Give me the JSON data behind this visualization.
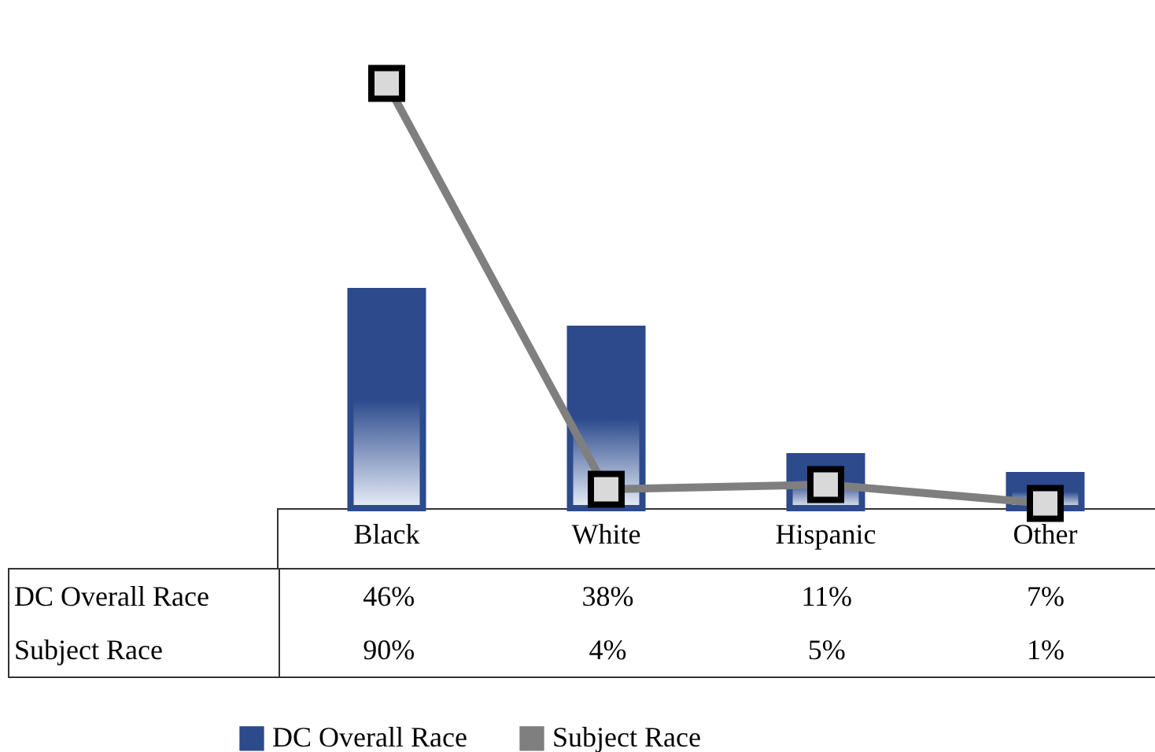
{
  "chart_data": {
    "type": "bar",
    "categories": [
      "Black",
      "White",
      "Hispanic",
      "Other"
    ],
    "series": [
      {
        "name": "DC Overall Race",
        "color": "#2c4a8c",
        "values": [
          46,
          38,
          11,
          7
        ],
        "value_labels": [
          "46%",
          "38%",
          "11%",
          "7%"
        ]
      },
      {
        "name": "Subject Race",
        "type": "line",
        "color": "#7f7f7f",
        "marker": "square",
        "values": [
          90,
          4,
          5,
          1
        ],
        "value_labels": [
          "90%",
          "4%",
          "5%",
          "1%"
        ]
      }
    ],
    "data_labels": true,
    "legend": "bottom",
    "grid": false
  }
}
